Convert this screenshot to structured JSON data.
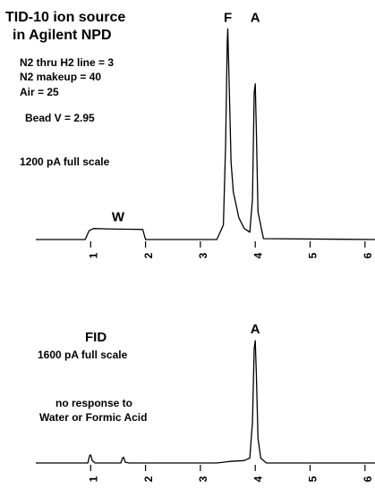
{
  "top_panel": {
    "title_line1": "TID-10 ion source",
    "title_line2": "in Agilent NPD",
    "settings": [
      "N2 thru H2 line = 3",
      "N2 makeup = 40",
      "Air = 25"
    ],
    "bead": "Bead V = 2.95",
    "scale": "1200 pA full scale"
  },
  "bottom_panel": {
    "title": "FID",
    "scale": "1600 pA full scale",
    "note_line1": "no response to",
    "note_line2": "Water or Formic Acid"
  },
  "chart_data": [
    {
      "type": "line",
      "title": "",
      "xlabel": "",
      "ylabel": "",
      "xlim": [
        0.0,
        6.2
      ],
      "ylim": [
        0,
        1200
      ],
      "xticks": [
        "1",
        "2",
        "3",
        "4",
        "5",
        "6"
      ],
      "annotations": [
        {
          "text": "W",
          "x": 1.5
        },
        {
          "text": "F",
          "x": 3.5
        },
        {
          "text": "A",
          "x": 4.0
        }
      ],
      "series": [
        {
          "x": [
            0.0,
            0.9,
            0.97,
            1.05,
            1.3,
            1.7,
            1.95,
            2.0,
            3.3,
            3.42,
            3.46,
            3.49,
            3.5,
            3.52,
            3.56,
            3.6,
            3.7,
            3.8,
            3.9,
            3.95,
            3.98,
            4.0,
            4.02,
            4.05,
            4.15,
            6.2
          ],
          "y": [
            0,
            0,
            48,
            60,
            58,
            56,
            55,
            0,
            0,
            80,
            520,
            1080,
            1150,
            900,
            420,
            260,
            120,
            60,
            40,
            220,
            800,
            850,
            600,
            150,
            5,
            0
          ]
        }
      ]
    },
    {
      "type": "line",
      "title": "",
      "xlabel": "",
      "ylabel": "",
      "xlim": [
        0.0,
        6.2
      ],
      "ylim": [
        0,
        1600
      ],
      "xticks": [
        "1",
        "2",
        "3",
        "4",
        "5",
        "6"
      ],
      "annotations": [
        {
          "text": "A",
          "x": 4.0
        }
      ],
      "series": [
        {
          "x": [
            0.0,
            0.95,
            0.98,
            1.0,
            1.03,
            1.08,
            1.55,
            1.58,
            1.6,
            1.63,
            1.7,
            3.3,
            3.55,
            3.8,
            3.9,
            3.95,
            3.98,
            4.0,
            4.02,
            4.05,
            4.1,
            4.2,
            6.2
          ],
          "y": [
            0,
            0,
            90,
            100,
            30,
            0,
            0,
            60,
            70,
            10,
            0,
            0,
            20,
            30,
            60,
            500,
            1400,
            1500,
            1100,
            300,
            60,
            0,
            0
          ]
        }
      ]
    }
  ]
}
